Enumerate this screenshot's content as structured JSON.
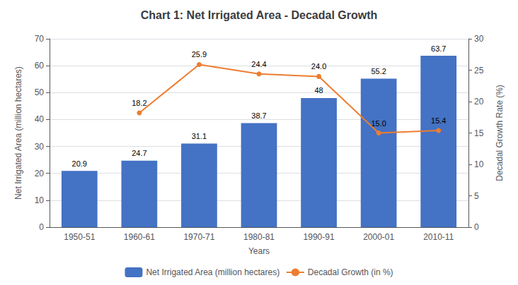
{
  "chart_data": {
    "type": "bar",
    "title": "Chart 1: Net Irrigated Area - Decadal Growth",
    "categories": [
      "1950-51",
      "1960-61",
      "1970-71",
      "1980-81",
      "1990-91",
      "2000-01",
      "2010-11"
    ],
    "series": [
      {
        "name": "Net Irrigated Area (million hectares)",
        "type": "bar",
        "color": "#4472C4",
        "values": [
          20.9,
          24.7,
          31.1,
          38.7,
          48,
          55.2,
          63.7
        ],
        "value_labels": [
          "20.9",
          "24.7",
          "31.1",
          "38.7",
          "48",
          "55.2",
          "63.7"
        ]
      },
      {
        "name": "Decadal Growth (in %)",
        "type": "line",
        "color": "#ED7D31",
        "axis": "y2",
        "marker": "circle",
        "values": [
          null,
          18.2,
          25.9,
          24.4,
          24.0,
          15.0,
          15.4
        ],
        "value_labels": [
          null,
          "18.2",
          "25.9",
          "24.4",
          "24.0",
          "15.0",
          "15.4"
        ]
      }
    ],
    "xlabel": "Years",
    "ylabel": "Net Irrigated Area (million hectares)",
    "y2label": "Decadal Growth Rate (%)",
    "ylim": [
      0,
      70
    ],
    "yticks": [
      0,
      10,
      20,
      30,
      40,
      50,
      60,
      70
    ],
    "y2lim": [
      0,
      30
    ],
    "y2ticks": [
      0,
      5,
      10,
      15,
      20,
      25,
      30
    ],
    "grid": true,
    "legend": "bottom",
    "data_labels": true
  }
}
